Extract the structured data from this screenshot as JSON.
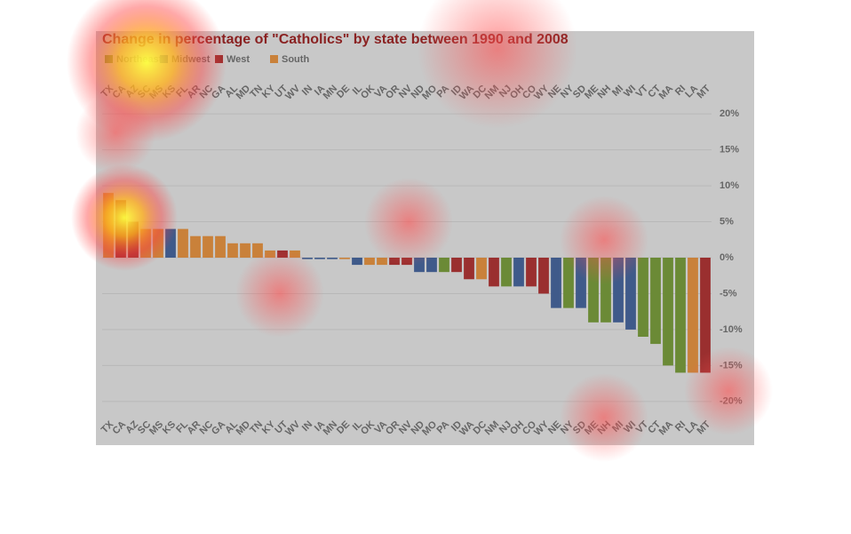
{
  "chart_data": {
    "type": "bar",
    "title": "Change in percentage of \"Catholics\" by state between 1990 and 2008",
    "legend": [
      {
        "name": "Northeast",
        "color": "#6b8a36"
      },
      {
        "name": "Midwest",
        "color": "#3f5a8a"
      },
      {
        "name": "West",
        "color": "#9a2f2f"
      },
      {
        "name": "South",
        "color": "#c9813a"
      }
    ],
    "categories": [
      "TX",
      "CA",
      "AZ",
      "SC",
      "MS",
      "KS",
      "FL",
      "AR",
      "NC",
      "GA",
      "AL",
      "MD",
      "TN",
      "KY",
      "UT",
      "WV",
      "IN",
      "IA",
      "MN",
      "DE",
      "IL",
      "OK",
      "VA",
      "OR",
      "NV",
      "ND",
      "MO",
      "PA",
      "ID",
      "WA",
      "DC",
      "NM",
      "NJ",
      "OH",
      "CO",
      "WY",
      "NE",
      "NY",
      "SD",
      "ME",
      "NH",
      "MI",
      "WI",
      "VT",
      "CT",
      "MA",
      "RI",
      "LA",
      "MT"
    ],
    "values": [
      9,
      8,
      5,
      4,
      4,
      4,
      4,
      3,
      3,
      3,
      2,
      2,
      2,
      1,
      1,
      1,
      -0.2,
      -0.2,
      -0.2,
      -0.2,
      -1,
      -1,
      -1,
      -1,
      -1,
      -2,
      -2,
      -2,
      -2,
      -3,
      -3,
      -4,
      -4,
      -4,
      -4,
      -5,
      -7,
      -7,
      -7,
      -9,
      -9,
      -9,
      -10,
      -11,
      -12,
      -15,
      -16,
      -16,
      -16
    ],
    "colors": [
      "#c9813a",
      "#9a2f2f",
      "#9a2f2f",
      "#c9813a",
      "#c9813a",
      "#3f5a8a",
      "#c9813a",
      "#c9813a",
      "#c9813a",
      "#c9813a",
      "#c9813a",
      "#c9813a",
      "#c9813a",
      "#c9813a",
      "#9a2f2f",
      "#c9813a",
      "#3f5a8a",
      "#3f5a8a",
      "#3f5a8a",
      "#c9813a",
      "#3f5a8a",
      "#c9813a",
      "#c9813a",
      "#9a2f2f",
      "#9a2f2f",
      "#3f5a8a",
      "#3f5a8a",
      "#6b8a36",
      "#9a2f2f",
      "#9a2f2f",
      "#c9813a",
      "#9a2f2f",
      "#6b8a36",
      "#3f5a8a",
      "#9a2f2f",
      "#9a2f2f",
      "#3f5a8a",
      "#6b8a36",
      "#3f5a8a",
      "#6b8a36",
      "#6b8a36",
      "#3f5a8a",
      "#3f5a8a",
      "#6b8a36",
      "#6b8a36",
      "#6b8a36",
      "#6b8a36",
      "#c9813a",
      "#9a2f2f"
    ],
    "ylim": [
      -22,
      22
    ],
    "yticks": [
      {
        "value": -20,
        "label": "-20%"
      },
      {
        "value": -15,
        "label": "-15%"
      },
      {
        "value": -10,
        "label": "-10%"
      },
      {
        "value": -5,
        "label": "-5%"
      },
      {
        "value": 0,
        "label": "0%"
      },
      {
        "value": 5,
        "label": "5%"
      },
      {
        "value": 10,
        "label": "10%"
      },
      {
        "value": 15,
        "label": "15%"
      },
      {
        "value": 20,
        "label": "20%"
      }
    ],
    "grid": true
  }
}
